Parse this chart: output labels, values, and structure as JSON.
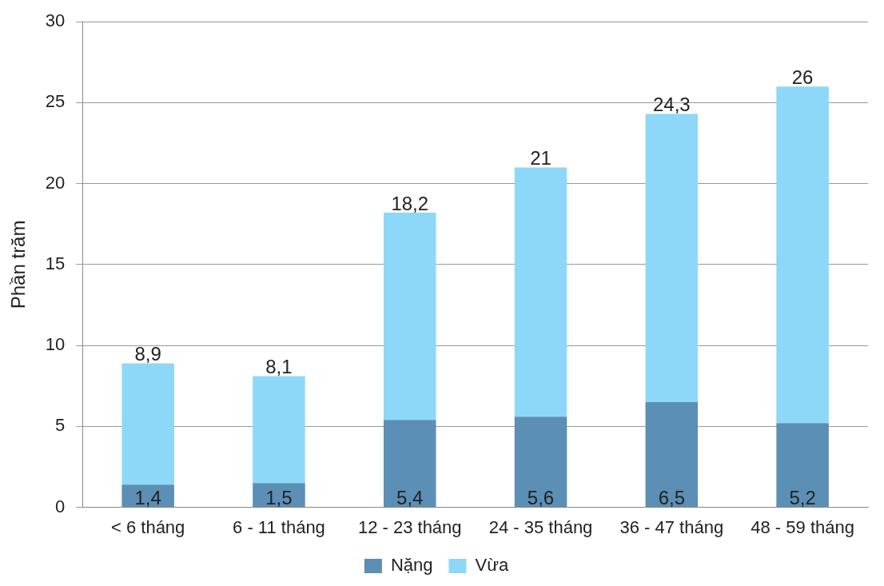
{
  "chart_data": {
    "type": "bar",
    "stacked": true,
    "ylabel": "Phần trăm",
    "categories": [
      "< 6 tháng",
      "6 - 11 tháng",
      "12 - 23 tháng",
      "24 - 35 tháng",
      "36 - 47 tháng",
      "48 - 59 tháng"
    ],
    "series": [
      {
        "name": "Nặng",
        "color": "#5b8fb5",
        "values": [
          1.4,
          1.5,
          5.4,
          5.6,
          6.5,
          5.2
        ],
        "value_labels": [
          "1,4",
          "1,5",
          "5,4",
          "5,6",
          "6,5",
          "5,2"
        ]
      },
      {
        "name": "Vừa",
        "color": "#8dd8f8",
        "values": [
          7.5,
          6.6,
          12.8,
          15.4,
          17.8,
          20.8
        ]
      }
    ],
    "totals": [
      "8,9",
      "8,1",
      "18,2",
      "21",
      "24,3",
      "26"
    ],
    "ylim": [
      0,
      30
    ],
    "yticks": [
      0,
      5,
      10,
      15,
      20,
      25,
      30
    ],
    "grid": "y",
    "legend": "bottom"
  }
}
